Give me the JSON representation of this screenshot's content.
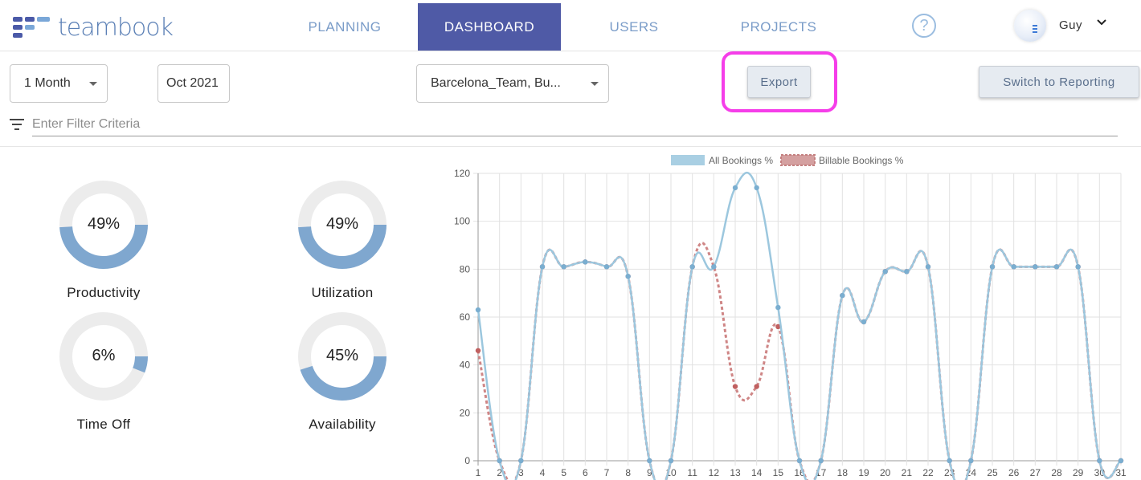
{
  "header": {
    "logo_text": "teambook",
    "tabs": [
      {
        "label": "PLANNING",
        "active": false
      },
      {
        "label": "DASHBOARD",
        "active": true
      },
      {
        "label": "USERS",
        "active": false
      },
      {
        "label": "PROJECTS",
        "active": false
      }
    ],
    "help_icon": "?",
    "user_name": "Guy",
    "accent_color": "#4f5aa6"
  },
  "toolbar": {
    "period_select": "1 Month",
    "date_field": "Oct 2021",
    "team_select": "Barcelona_Team, Bu...",
    "export_label": "Export",
    "switch_label": "Switch to Reporting",
    "filter_placeholder": "Enter Filter Criteria"
  },
  "stats": [
    {
      "label": "Productivity",
      "value_text": "49%",
      "value": 49
    },
    {
      "label": "Utilization",
      "value_text": "49%",
      "value": 49
    },
    {
      "label": "Time Off",
      "value_text": "6%",
      "value": 6
    },
    {
      "label": "Availability",
      "value_text": "45%",
      "value": 45
    }
  ],
  "chart_data": {
    "type": "line",
    "x": [
      1,
      2,
      3,
      4,
      5,
      6,
      7,
      8,
      9,
      10,
      11,
      12,
      13,
      14,
      15,
      16,
      17,
      18,
      19,
      20,
      21,
      22,
      23,
      24,
      25,
      26,
      27,
      28,
      29,
      30,
      31
    ],
    "ylim": [
      0,
      120
    ],
    "yticks": [
      0,
      20,
      40,
      60,
      80,
      100,
      120
    ],
    "grid": true,
    "legend_position": "top",
    "series": [
      {
        "name": "All Bookings %",
        "color": "#9cc7de",
        "point_color": "#7aaed0",
        "style": "solid",
        "values": [
          63,
          0,
          0,
          81,
          81,
          83,
          81,
          77,
          0,
          0,
          81,
          81,
          114,
          114,
          64,
          0,
          0,
          69,
          58,
          79,
          79,
          81,
          0,
          0,
          81,
          81,
          81,
          81,
          81,
          0,
          0
        ]
      },
      {
        "name": "Billable Bookings %",
        "color": "#cf8686",
        "point_color": "#c06060",
        "style": "dashed",
        "values": [
          46,
          0,
          0,
          81,
          81,
          83,
          81,
          77,
          0,
          0,
          81,
          81,
          31,
          31,
          56,
          0,
          0,
          69,
          58,
          79,
          79,
          81,
          0,
          0,
          81,
          81,
          81,
          81,
          81,
          0,
          0
        ]
      }
    ]
  }
}
